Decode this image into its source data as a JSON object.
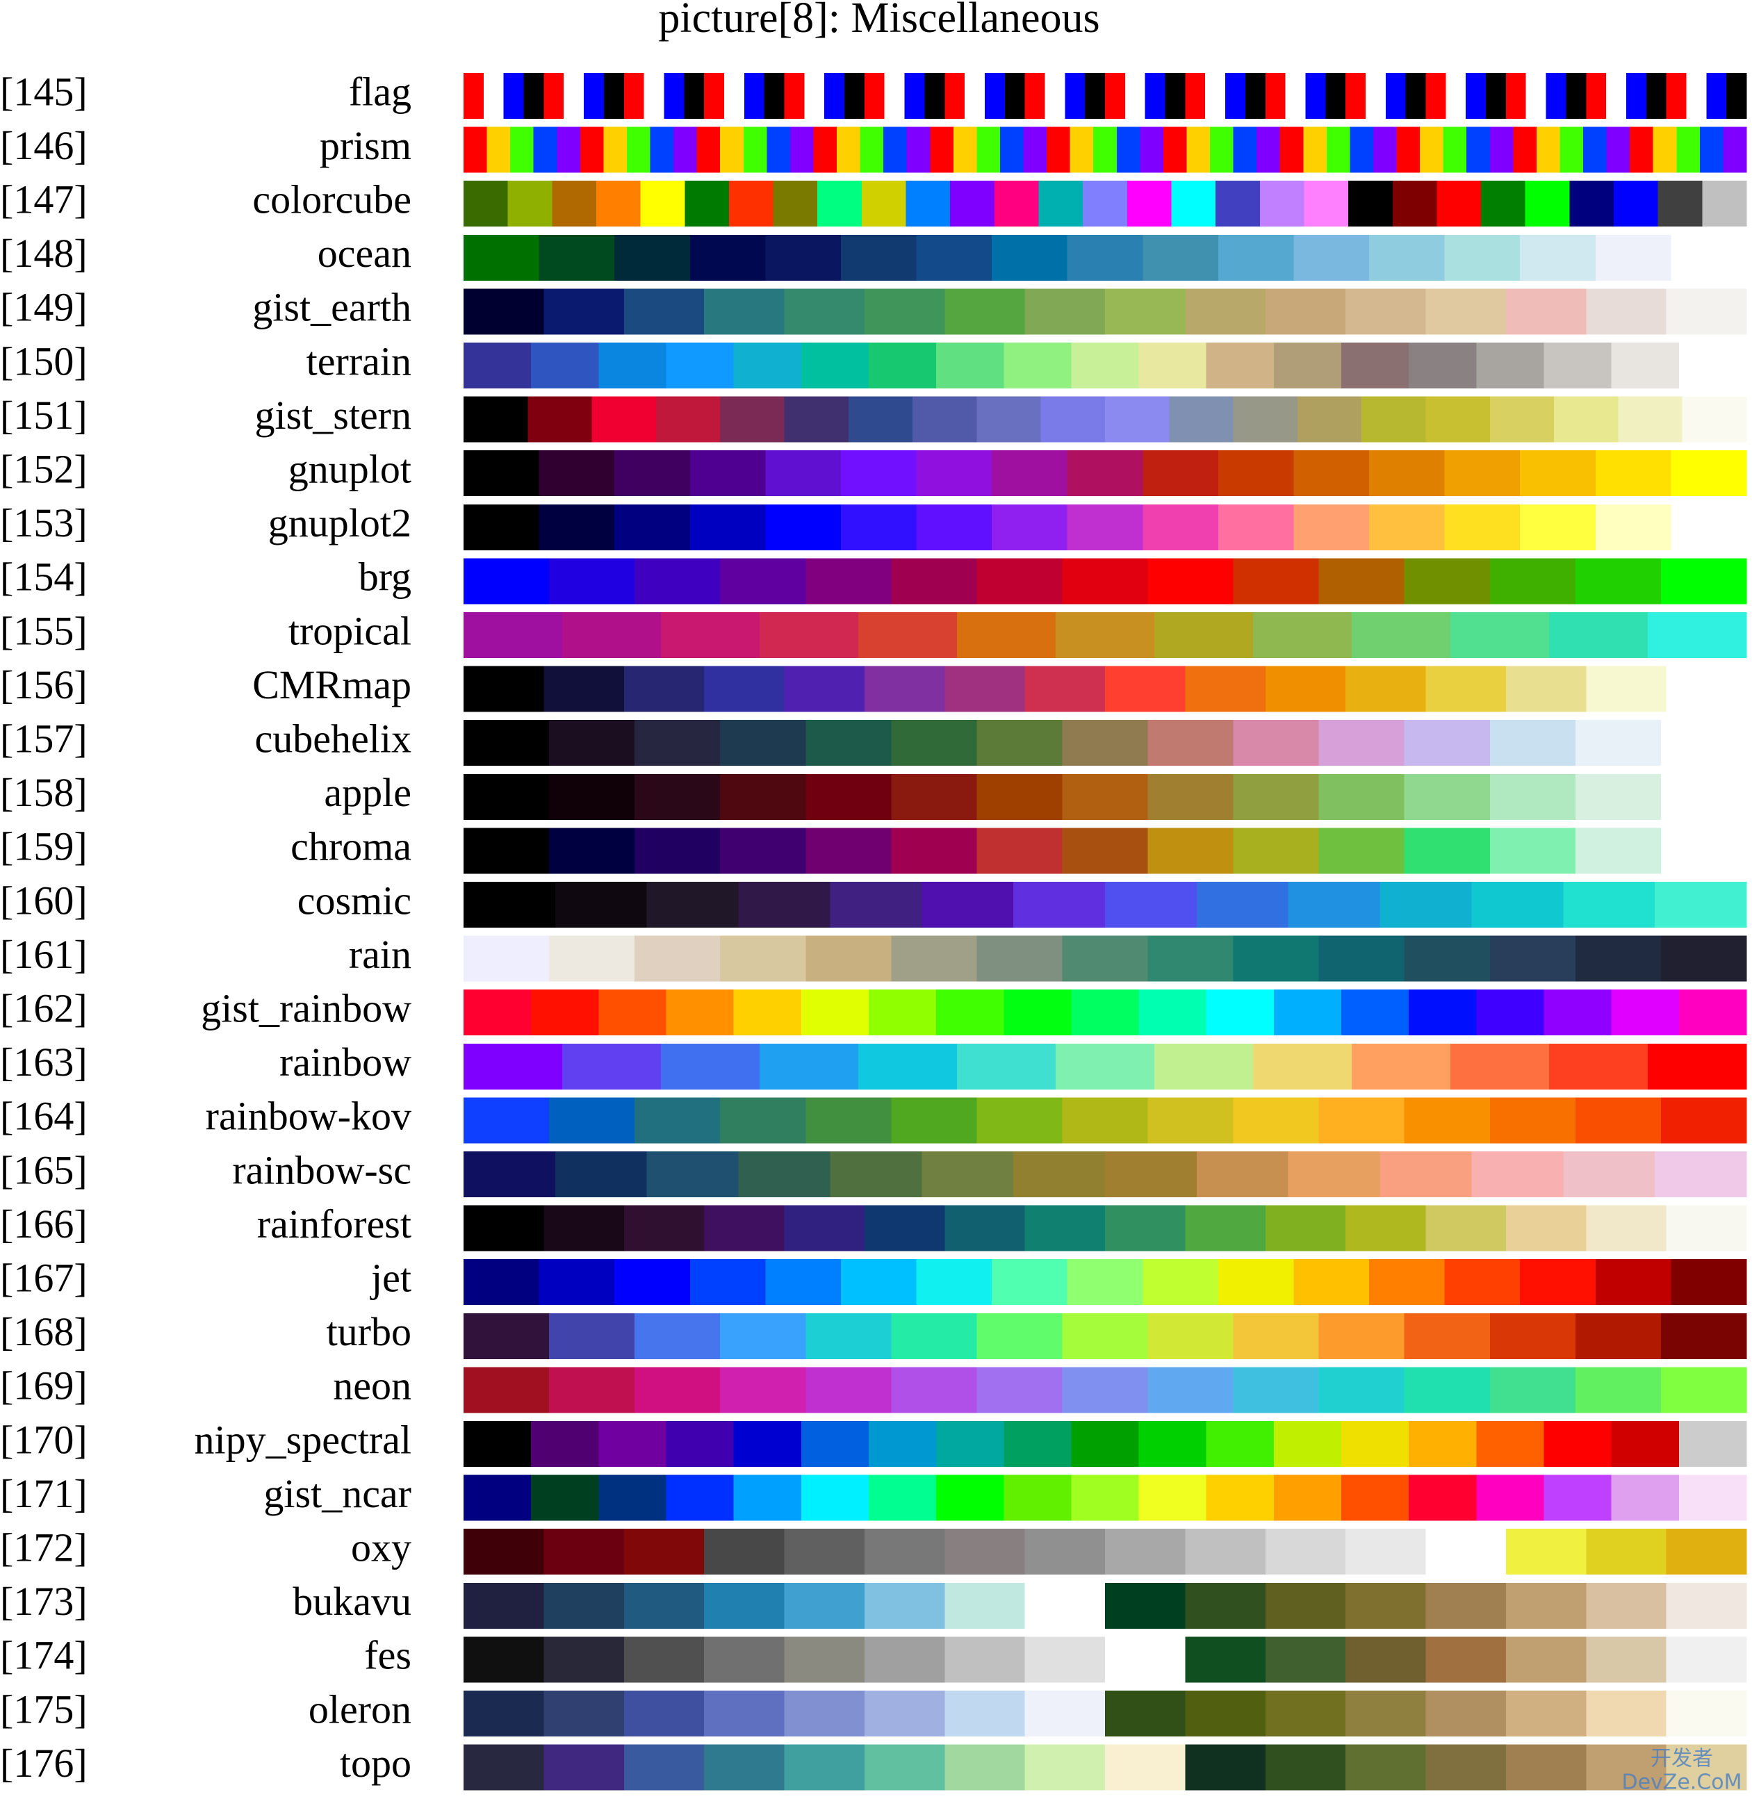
{
  "title": "picture[8]:  Miscellaneous",
  "watermark": [
    "开发者",
    "DevZe.CoM"
  ],
  "rows": [
    {
      "index": "[145]",
      "name": "flag",
      "colors": [
        "#ff0000",
        "#ffffff",
        "#0000ff",
        "#000000",
        "#ff0000",
        "#ffffff",
        "#0000ff",
        "#000000",
        "#ff0000",
        "#ffffff",
        "#0000ff",
        "#000000",
        "#ff0000",
        "#ffffff",
        "#0000ff",
        "#000000",
        "#ff0000",
        "#ffffff",
        "#0000ff",
        "#000000",
        "#ff0000",
        "#ffffff",
        "#0000ff",
        "#000000",
        "#ff0000",
        "#ffffff",
        "#0000ff",
        "#000000",
        "#ff0000",
        "#ffffff",
        "#0000ff",
        "#000000",
        "#ff0000",
        "#ffffff",
        "#0000ff",
        "#000000",
        "#ff0000",
        "#ffffff",
        "#0000ff",
        "#000000",
        "#ff0000",
        "#ffffff",
        "#0000ff",
        "#000000",
        "#ff0000",
        "#ffffff",
        "#0000ff",
        "#000000",
        "#ff0000",
        "#ffffff",
        "#0000ff",
        "#000000",
        "#ff0000",
        "#ffffff",
        "#0000ff",
        "#000000",
        "#ff0000",
        "#ffffff",
        "#0000ff",
        "#000000",
        "#ff0000",
        "#ffffff",
        "#0000ff",
        "#000000"
      ]
    },
    {
      "index": "[146]",
      "name": "prism",
      "colors": [
        "#ff0000",
        "#ffd000",
        "#40ff00",
        "#0040ff",
        "#8000ff",
        "#ff0000",
        "#ffd000",
        "#40ff00",
        "#0040ff",
        "#8000ff",
        "#ff0000",
        "#ffd000",
        "#40ff00",
        "#0040ff",
        "#8000ff",
        "#ff0000",
        "#ffd000",
        "#40ff00",
        "#0040ff",
        "#8000ff",
        "#ff0000",
        "#ffd000",
        "#40ff00",
        "#0040ff",
        "#8000ff",
        "#ff0000",
        "#ffd000",
        "#40ff00",
        "#0040ff",
        "#8000ff",
        "#ff0000",
        "#ffd000",
        "#40ff00",
        "#0040ff",
        "#8000ff",
        "#ff0000",
        "#ffd000",
        "#40ff00",
        "#0040ff",
        "#8000ff",
        "#ff0000",
        "#ffd000",
        "#40ff00",
        "#0040ff",
        "#8000ff",
        "#ff0000",
        "#ffd000",
        "#40ff00",
        "#0040ff",
        "#8000ff",
        "#ff0000",
        "#ffd000",
        "#40ff00",
        "#0040ff",
        "#8000ff"
      ]
    },
    {
      "index": "[147]",
      "name": "colorcube",
      "colors": [
        "#3a6b00",
        "#8fb000",
        "#b06800",
        "#ff8000",
        "#ffff00",
        "#007a00",
        "#ff3000",
        "#7a7a00",
        "#00ff80",
        "#d0d000",
        "#0080ff",
        "#8000ff",
        "#ff0080",
        "#00b0b0",
        "#8080ff",
        "#ff00ff",
        "#00ffff",
        "#4040c0",
        "#c080ff",
        "#ff80ff",
        "#000000",
        "#7f0000",
        "#ff0000",
        "#007f00",
        "#00ff00",
        "#00007f",
        "#0000ff",
        "#404040",
        "#c0c0c0"
      ]
    },
    {
      "index": "[148]",
      "name": "ocean",
      "colors": [
        "#007000",
        "#004a20",
        "#002a3a",
        "#00084f",
        "#0a1660",
        "#103a70",
        "#124a8a",
        "#0070a8",
        "#2a80b0",
        "#4090b0",
        "#55a8d0",
        "#7ab8e0",
        "#90cce0",
        "#aae0e0",
        "#d0e8f0",
        "#eef0fa",
        "#ffffff"
      ]
    },
    {
      "index": "[149]",
      "name": "gist_earth",
      "colors": [
        "#000030",
        "#0a1a6e",
        "#1a4a80",
        "#287880",
        "#358a6e",
        "#40965a",
        "#55a540",
        "#80a855",
        "#98b855",
        "#b8a86a",
        "#c8a878",
        "#d4b890",
        "#e0c8a0",
        "#f0bcb8",
        "#e8dcd8",
        "#f4f2ee"
      ]
    },
    {
      "index": "[150]",
      "name": "terrain",
      "colors": [
        "#333399",
        "#2f55c0",
        "#0a85e0",
        "#1099ff",
        "#10b0d0",
        "#00c0a0",
        "#18c870",
        "#60e080",
        "#90f080",
        "#c8f098",
        "#e8e8a0",
        "#d0b488",
        "#b09e78",
        "#8a7070",
        "#8a8282",
        "#a8a4a0",
        "#c8c4c0",
        "#e8e4e0",
        "#ffffff"
      ]
    },
    {
      "index": "[151]",
      "name": "gist_stern",
      "colors": [
        "#000000",
        "#800010",
        "#f00030",
        "#c0183a",
        "#7a2a55",
        "#403070",
        "#304a90",
        "#505aa8",
        "#6a70c0",
        "#7a7ae8",
        "#8a8af0",
        "#8090b0",
        "#989888",
        "#b0a060",
        "#b8b830",
        "#c8c030",
        "#d8d060",
        "#e8e890",
        "#f0f0c0",
        "#fafaf0"
      ]
    },
    {
      "index": "[152]",
      "name": "gnuplot",
      "colors": [
        "#000000",
        "#300030",
        "#400060",
        "#500090",
        "#6010d0",
        "#7010ff",
        "#9010e0",
        "#a010a0",
        "#b01060",
        "#c02010",
        "#c83a00",
        "#d06000",
        "#e08000",
        "#f0a000",
        "#f8c000",
        "#ffe000",
        "#ffff00"
      ]
    },
    {
      "index": "[153]",
      "name": "gnuplot2",
      "colors": [
        "#000000",
        "#000040",
        "#000080",
        "#0000c0",
        "#0000ff",
        "#3010ff",
        "#6010ff",
        "#9020f0",
        "#c030d0",
        "#f040b0",
        "#ff70a0",
        "#ffa070",
        "#ffc040",
        "#ffe020",
        "#ffff40",
        "#ffffc0",
        "#ffffff"
      ]
    },
    {
      "index": "[154]",
      "name": "brg",
      "colors": [
        "#0000ff",
        "#2000e0",
        "#3f00c0",
        "#6000a0",
        "#800080",
        "#a00050",
        "#c00030",
        "#e00010",
        "#ff0000",
        "#d03000",
        "#b06000",
        "#709000",
        "#40b000",
        "#20d000",
        "#00ff00"
      ]
    },
    {
      "index": "[155]",
      "name": "tropical",
      "colors": [
        "#a010a0",
        "#b0108a",
        "#c81870",
        "#d02850",
        "#d84030",
        "#d87010",
        "#c89020",
        "#b0a820",
        "#90b850",
        "#70d070",
        "#50e090",
        "#30e0b0",
        "#30f0e0"
      ]
    },
    {
      "index": "[156]",
      "name": "CMRmap",
      "colors": [
        "#000000",
        "#10103a",
        "#262673",
        "#3030a0",
        "#5020b0",
        "#8030a0",
        "#a03080",
        "#d03050",
        "#ff4030",
        "#f07010",
        "#f09000",
        "#e8b010",
        "#e8d040",
        "#e8e090",
        "#f8f8d0",
        "#ffffff"
      ]
    },
    {
      "index": "[157]",
      "name": "cubehelix",
      "colors": [
        "#000000",
        "#1a0e20",
        "#262640",
        "#1e3a50",
        "#1e5a4a",
        "#306a38",
        "#5c7a38",
        "#907a50",
        "#c07a70",
        "#d888a8",
        "#d8a0d8",
        "#c8b8f0",
        "#c8e0f0",
        "#e8f0f8",
        "#ffffff"
      ]
    },
    {
      "index": "[158]",
      "name": "apple",
      "colors": [
        "#000000",
        "#100008",
        "#2a0818",
        "#500810",
        "#700010",
        "#8a1a10",
        "#a04000",
        "#b06010",
        "#a08030",
        "#90a040",
        "#80c060",
        "#90d890",
        "#b0e8c0",
        "#d8f0e0",
        "#ffffff"
      ]
    },
    {
      "index": "[159]",
      "name": "chroma",
      "colors": [
        "#000000",
        "#000040",
        "#200060",
        "#400070",
        "#700070",
        "#a00050",
        "#c03030",
        "#a85010",
        "#c09010",
        "#a8b020",
        "#70c040",
        "#30e070",
        "#80f0b0",
        "#d0f0e0",
        "#ffffff"
      ]
    },
    {
      "index": "[160]",
      "name": "cosmic",
      "colors": [
        "#000000",
        "#100810",
        "#201828",
        "#301848",
        "#402080",
        "#5010b0",
        "#6030e0",
        "#5050f0",
        "#3070e0",
        "#2090e0",
        "#10b0d0",
        "#10c8d0",
        "#20e0d0",
        "#40f0d0"
      ]
    },
    {
      "index": "[161]",
      "name": "rain",
      "colors": [
        "#eeeeff",
        "#ede8e0",
        "#e0d0c0",
        "#d8c8a0",
        "#c8b080",
        "#a0a088",
        "#809080",
        "#508a70",
        "#308870",
        "#107870",
        "#106470",
        "#205060",
        "#283e5a",
        "#202a40",
        "#202030"
      ]
    },
    {
      "index": "[162]",
      "name": "gist_rainbow",
      "colors": [
        "#ff0030",
        "#ff1000",
        "#ff5000",
        "#ff9000",
        "#ffd000",
        "#e0ff00",
        "#90ff00",
        "#40ff00",
        "#00ff10",
        "#00ff60",
        "#00ffb0",
        "#00ffff",
        "#00b0ff",
        "#0060ff",
        "#0010ff",
        "#4000ff",
        "#9000ff",
        "#e000ff",
        "#ff00c0"
      ]
    },
    {
      "index": "[163]",
      "name": "rainbow",
      "colors": [
        "#8000ff",
        "#6040f0",
        "#4070f0",
        "#20a0f0",
        "#10c8e0",
        "#40e0d0",
        "#80f0b0",
        "#c0f090",
        "#f0d870",
        "#ffa060",
        "#ff7040",
        "#ff4020",
        "#ff0000"
      ]
    },
    {
      "index": "[164]",
      "name": "rainbow-kov",
      "colors": [
        "#1040ff",
        "#0060c0",
        "#207080",
        "#308060",
        "#409040",
        "#50a820",
        "#80b818",
        "#b0b818",
        "#d0c020",
        "#f0c820",
        "#ffb020",
        "#f89000",
        "#f87000",
        "#f85000",
        "#f02000"
      ]
    },
    {
      "index": "[165]",
      "name": "rainbow-sc",
      "colors": [
        "#101060",
        "#103060",
        "#205070",
        "#306050",
        "#507040",
        "#708040",
        "#908030",
        "#a08030",
        "#c89050",
        "#e8a060",
        "#f8a080",
        "#f8b0b0",
        "#f0c0c8",
        "#f0c8e8"
      ]
    },
    {
      "index": "[166]",
      "name": "rainforest",
      "colors": [
        "#000000",
        "#180818",
        "#301030",
        "#401060",
        "#302080",
        "#103870",
        "#106070",
        "#108070",
        "#309060",
        "#50a840",
        "#80b020",
        "#b0b820",
        "#d0c860",
        "#e8d098",
        "#f0e8c8",
        "#f8f8f0"
      ]
    },
    {
      "index": "[167]",
      "name": "jet",
      "colors": [
        "#000080",
        "#0000c0",
        "#0000ff",
        "#0040ff",
        "#0080ff",
        "#00c0ff",
        "#10f0f0",
        "#50ffb0",
        "#90ff70",
        "#c0ff30",
        "#f0f000",
        "#ffc000",
        "#ff8000",
        "#ff4000",
        "#ff1000",
        "#c00000",
        "#800000"
      ]
    },
    {
      "index": "[168]",
      "name": "turbo",
      "colors": [
        "#30123b",
        "#4145ab",
        "#4675ed",
        "#39a2fc",
        "#1bcfd4",
        "#24eca6",
        "#61fc6c",
        "#a4fc3b",
        "#d1e834",
        "#f3c63a",
        "#fe9b2d",
        "#f36315",
        "#d93806",
        "#b11901",
        "#7a0402"
      ]
    },
    {
      "index": "[169]",
      "name": "neon",
      "colors": [
        "#a01020",
        "#c01050",
        "#d01080",
        "#d020b0",
        "#c030d0",
        "#b050e8",
        "#a070f0",
        "#8090f0",
        "#60a8f0",
        "#40c0e0",
        "#20d0d0",
        "#20e0b0",
        "#40e090",
        "#60f060",
        "#80ff40"
      ]
    },
    {
      "index": "[170]",
      "name": "nipy_spectral",
      "colors": [
        "#000000",
        "#500070",
        "#7000a0",
        "#4000b0",
        "#0000d0",
        "#0060e0",
        "#0098d0",
        "#00a8a0",
        "#00a060",
        "#00a000",
        "#00d000",
        "#40f000",
        "#c0f000",
        "#f0e000",
        "#ffb000",
        "#ff6000",
        "#ff0000",
        "#d00000",
        "#cccccc"
      ]
    },
    {
      "index": "[171]",
      "name": "gist_ncar",
      "colors": [
        "#000080",
        "#004020",
        "#003080",
        "#0030ff",
        "#00a0ff",
        "#00f0ff",
        "#00ff90",
        "#00ff00",
        "#60f000",
        "#a0ff20",
        "#f0ff20",
        "#ffd000",
        "#ffa000",
        "#ff5000",
        "#ff0030",
        "#ff00c0",
        "#c040ff",
        "#e0a0f0",
        "#f8e0f8"
      ]
    },
    {
      "index": "[172]",
      "name": "oxy",
      "colors": [
        "#400008",
        "#6a0010",
        "#800808",
        "#484848",
        "#606060",
        "#787878",
        "#888080",
        "#909090",
        "#a8a8a8",
        "#c0c0c0",
        "#d8d8d8",
        "#e8e8e8",
        "#ffffff",
        "#f0f040",
        "#e0d020",
        "#e0b010"
      ]
    },
    {
      "index": "[173]",
      "name": "bukavu",
      "colors": [
        "#202040",
        "#204060",
        "#205a80",
        "#2080b0",
        "#40a0d0",
        "#80c0e0",
        "#c0e8e0",
        "#ffffff",
        "#004020",
        "#305020",
        "#606020",
        "#807030",
        "#a08050",
        "#c0a070",
        "#d8c0a0",
        "#f0e8e0"
      ]
    },
    {
      "index": "[174]",
      "name": "fes",
      "colors": [
        "#101010",
        "#282838",
        "#505050",
        "#707070",
        "#8a8a80",
        "#a0a0a0",
        "#c0c0c0",
        "#e0e0e0",
        "#ffffff",
        "#105020",
        "#406030",
        "#706030",
        "#a07040",
        "#c0a070",
        "#d8c8a8",
        "#f0f0f0"
      ]
    },
    {
      "index": "[175]",
      "name": "oleron",
      "colors": [
        "#1a2a50",
        "#304070",
        "#4050a0",
        "#6070c0",
        "#8090d0",
        "#a0b0e0",
        "#c0d8f0",
        "#eef0fa",
        "#305018",
        "#506010",
        "#707020",
        "#908040",
        "#b09060",
        "#d0b080",
        "#f0d8b0",
        "#fafaf0"
      ]
    },
    {
      "index": "[176]",
      "name": "topo",
      "colors": [
        "#282840",
        "#402880",
        "#3a5aa0",
        "#307a90",
        "#40a0a0",
        "#60c0a0",
        "#a0d8a0",
        "#d0f0b0",
        "#f8f0d0",
        "#103020",
        "#305020",
        "#607030",
        "#807040",
        "#a08050",
        "#c0a070",
        "#e0d0a0"
      ]
    }
  ]
}
